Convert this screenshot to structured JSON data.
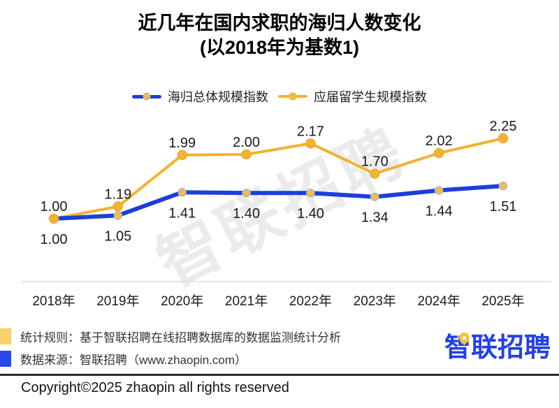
{
  "title": {
    "line1": "近几年在国内求职的海归人数变化",
    "line2": "(以2018年为基数1)"
  },
  "watermark": "智联招聘",
  "chart_data": {
    "type": "line",
    "title": "近几年在国内求职的海归人数变化",
    "subtitle": "(以2018年为基数1)",
    "baseline": "2018年 = 1",
    "categories": [
      "2018年",
      "2019年",
      "2020年",
      "2021年",
      "2022年",
      "2023年",
      "2024年",
      "2025年"
    ],
    "series": [
      {
        "name": "海归总体规模指数",
        "color": "#1E3ED8",
        "marker_fill": "#F5BE3A",
        "marker_stroke": "#A9B6E0",
        "label_position": "below",
        "values": [
          1.0,
          1.05,
          1.41,
          1.4,
          1.4,
          1.34,
          1.44,
          1.51
        ]
      },
      {
        "name": "应届留学生规模指数",
        "color": "#F2B232",
        "marker_fill": "#F2B232",
        "marker_stroke": "#ECAC2D",
        "label_position": "above",
        "values": [
          1.0,
          1.19,
          1.99,
          2.0,
          2.17,
          1.7,
          2.02,
          2.25
        ]
      }
    ],
    "ylim": [
      1.0,
      2.4
    ],
    "grid": false,
    "legend_position": "top",
    "axis_line_color": "#DEDEDE"
  },
  "footer": {
    "note1": "统计规则：基于智联招聘在线招聘数据库的数据监测统计分析",
    "note2": "数据来源：智联招聘（www.zhaopin.com）",
    "copyright": "Copyright©2025 zhaopin all rights reserved",
    "logo_text": "智联招聘"
  }
}
